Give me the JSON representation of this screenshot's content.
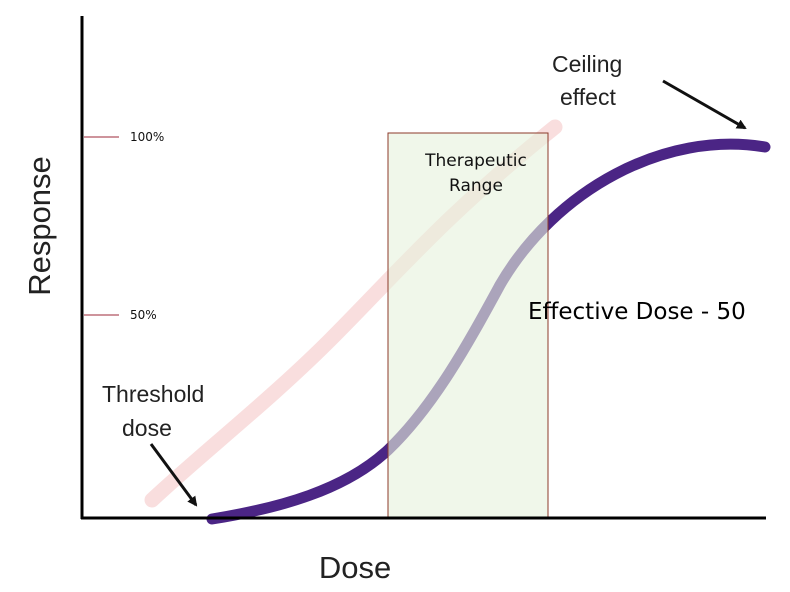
{
  "labels": {
    "y_axis": "Response",
    "x_axis": "Dose",
    "tick_100": "100%",
    "tick_50": "50%",
    "threshold_line1": "Threshold",
    "threshold_line2": "dose",
    "ceiling_line1": "Ceiling",
    "ceiling_line2": "effect",
    "range_line1": "Therapeutic",
    "range_line2": "Range",
    "ed50": "Effective Dose - 50"
  },
  "colors": {
    "curve": "#4b2585",
    "faded_curve": "#f9dede",
    "range_fill": "#e6f2dd",
    "range_border": "#8c3a2a",
    "axis": "#000000",
    "tick": "#9c2a3a",
    "arrow": "#111111"
  }
}
